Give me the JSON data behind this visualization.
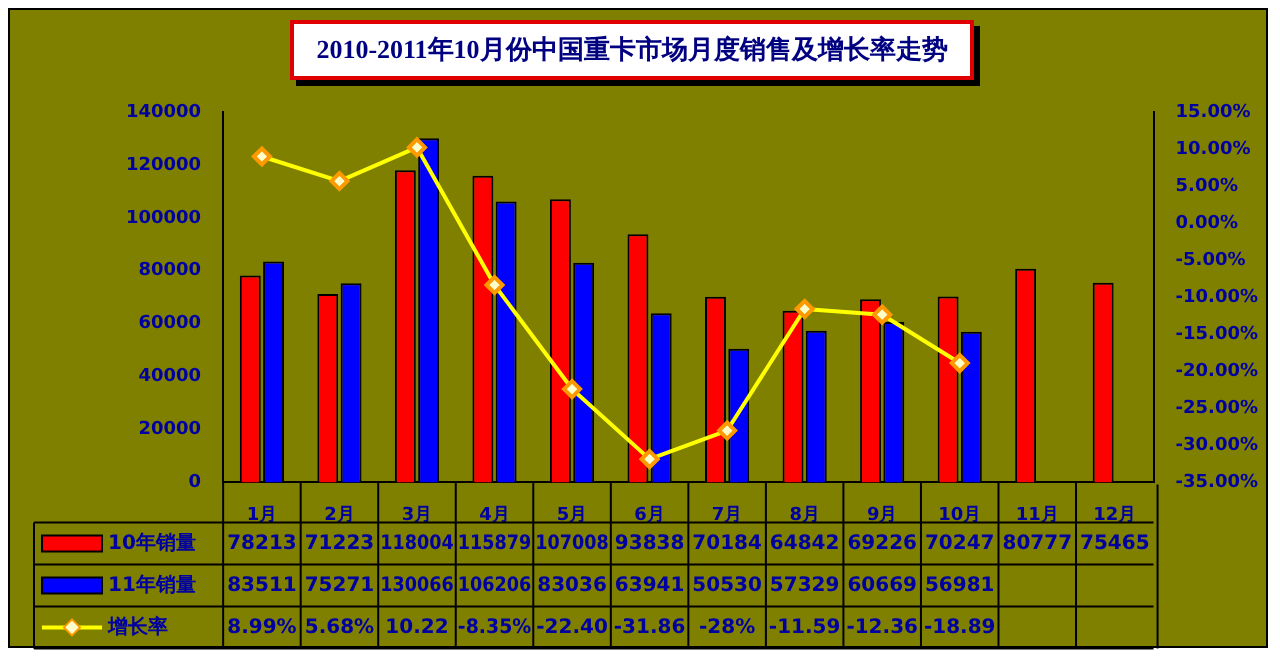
{
  "chart_data": {
    "type": "bar",
    "title": "2010-2011年10月份中国重卡市场月度销售及增长率走势",
    "categories": [
      "1月",
      "2月",
      "3月",
      "4月",
      "5月",
      "6月",
      "7月",
      "8月",
      "9月",
      "10月",
      "11月",
      "12月"
    ],
    "series": [
      {
        "name": "10年销量",
        "color": "#ff0000",
        "values": [
          78213,
          71223,
          118004,
          115879,
          107008,
          93838,
          70184,
          64842,
          69226,
          70247,
          80777,
          75465
        ],
        "value_labels": [
          "78213",
          "71223",
          "118004",
          "115879",
          "107008",
          "93838",
          "70184",
          "64842",
          "69226",
          "70247",
          "80777",
          "75465"
        ]
      },
      {
        "name": "11年销量",
        "color": "#0000ff",
        "values": [
          83511,
          75271,
          130066,
          106206,
          83036,
          63941,
          50530,
          57329,
          60669,
          56981,
          null,
          null
        ],
        "value_labels": [
          "83511",
          "75271",
          "130066",
          "106206",
          "83036",
          "63941",
          "50530",
          "57329",
          "60669",
          "56981",
          null,
          null
        ]
      },
      {
        "name": "增长率",
        "type": "line",
        "axis": "y2",
        "color": "#ffff00",
        "marker": "diamond",
        "values": [
          8.99,
          5.68,
          10.22,
          -8.35,
          -22.4,
          -31.86,
          -28,
          -11.59,
          -12.36,
          -18.89,
          null,
          null
        ],
        "value_labels": [
          "8.99%",
          "5.68%",
          "10.22",
          "-8.35%",
          "-22.40",
          "-31.86",
          "-28%",
          "-11.59",
          "-12.36",
          "-18.89",
          null,
          null
        ]
      }
    ],
    "legend": "bottom left",
    "ylim": [
      0,
      140000
    ],
    "yticks": [
      0,
      20000,
      40000,
      60000,
      80000,
      100000,
      120000,
      140000
    ],
    "y2lim": [
      -35,
      15
    ],
    "y2ticks": [
      {
        "value": 15,
        "label": "15.00%"
      },
      {
        "value": 10,
        "label": "10.00%"
      },
      {
        "value": 5,
        "label": "5.00%"
      },
      {
        "value": 0,
        "label": "0.00%"
      },
      {
        "value": -5,
        "label": "-5.00%"
      },
      {
        "value": -10,
        "label": "-10.00%"
      },
      {
        "value": -15,
        "label": "-15.00%"
      },
      {
        "value": -20,
        "label": "-20.00%"
      },
      {
        "value": -25,
        "label": "-25.00%"
      },
      {
        "value": -30,
        "label": "-30.00%"
      },
      {
        "value": -35,
        "label": "-35.00%"
      }
    ]
  }
}
